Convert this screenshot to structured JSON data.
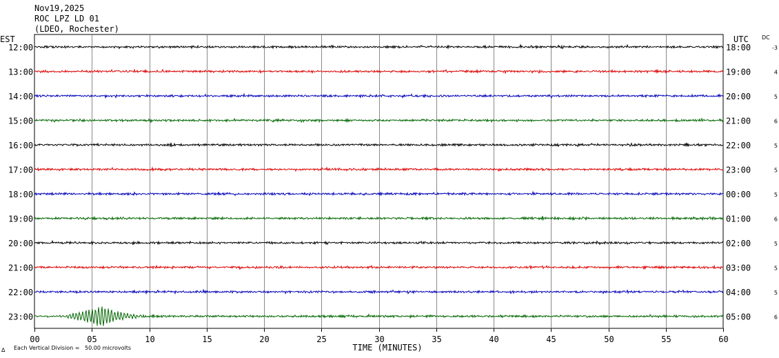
{
  "header": {
    "date": "Nov19,2025",
    "station": "ROC LPZ LD 01",
    "network": "(LDEO, Rochester)"
  },
  "left_axis_title": "EST",
  "right_axis_title": "UTC",
  "dc_title": "DC",
  "footer": {
    "logo_mark": "∆",
    "vertical_division": "Each Vertical Division =   50.00 microvolts"
  },
  "chart_data": {
    "type": "line",
    "title": "",
    "xlabel": "TIME (MINUTES)",
    "xlim": [
      0,
      60
    ],
    "x_ticks": [
      "00",
      "05",
      "10",
      "15",
      "20",
      "25",
      "30",
      "35",
      "40",
      "45",
      "50",
      "55",
      "60"
    ],
    "grid": true,
    "trace_colors": [
      "#000000",
      "#dd0000",
      "#0000bb",
      "#006600"
    ],
    "rows": [
      {
        "est": "12:00",
        "utc": "18:00",
        "dc": "-3"
      },
      {
        "est": "13:00",
        "utc": "19:00",
        "dc": "4"
      },
      {
        "est": "14:00",
        "utc": "20:00",
        "dc": "5"
      },
      {
        "est": "15:00",
        "utc": "21:00",
        "dc": "6"
      },
      {
        "est": "16:00",
        "utc": "22:00",
        "dc": "5"
      },
      {
        "est": "17:00",
        "utc": "23:00",
        "dc": "5"
      },
      {
        "est": "18:00",
        "utc": "00:00",
        "dc": "5"
      },
      {
        "est": "19:00",
        "utc": "01:00",
        "dc": "6"
      },
      {
        "est": "20:00",
        "utc": "02:00",
        "dc": "5"
      },
      {
        "est": "21:00",
        "utc": "03:00",
        "dc": "5"
      },
      {
        "est": "22:00",
        "utc": "04:00",
        "dc": "5"
      },
      {
        "est": "23:00",
        "utc": "05:00",
        "dc": "6"
      }
    ]
  }
}
